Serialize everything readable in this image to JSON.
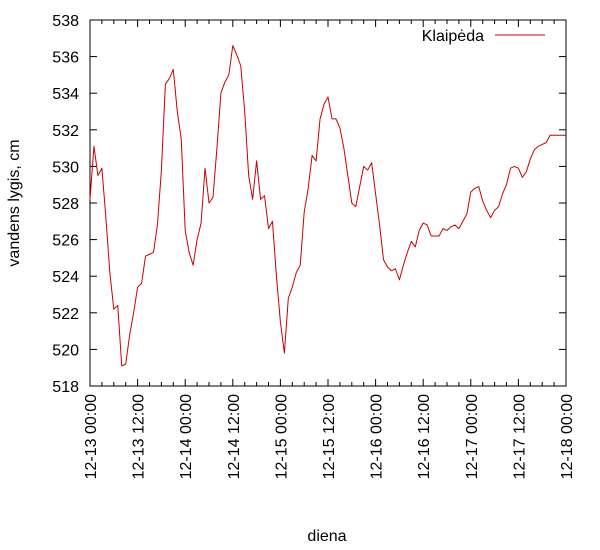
{
  "chart_data": {
    "type": "line",
    "title": "",
    "xlabel": "diena",
    "ylabel": "vandens lygis, cm",
    "ylim": [
      518,
      538
    ],
    "y_ticks": [
      518,
      520,
      522,
      524,
      526,
      528,
      530,
      532,
      534,
      536,
      538
    ],
    "x_range_hours": [
      0,
      120
    ],
    "x_ticks": [
      {
        "hour": 0,
        "label": "12-13 00:00"
      },
      {
        "hour": 12,
        "label": "12-13 12:00"
      },
      {
        "hour": 24,
        "label": "12-14 00:00"
      },
      {
        "hour": 36,
        "label": "12-14 12:00"
      },
      {
        "hour": 48,
        "label": "12-15 00:00"
      },
      {
        "hour": 60,
        "label": "12-15 12:00"
      },
      {
        "hour": 72,
        "label": "12-16 00:00"
      },
      {
        "hour": 84,
        "label": "12-16 12:00"
      },
      {
        "hour": 96,
        "label": "12-17 00:00"
      },
      {
        "hour": 108,
        "label": "12-17 12:00"
      },
      {
        "hour": 120,
        "label": "12-18 00:00"
      }
    ],
    "legend_position": "top-right",
    "series": [
      {
        "name": "Klaipėda",
        "color": "#cc0000",
        "x": [
          0,
          1,
          2,
          3,
          4,
          5,
          6,
          7,
          8,
          9,
          10,
          11,
          12,
          13,
          14,
          15,
          16,
          17,
          18,
          19,
          20,
          21,
          22,
          23,
          24,
          25,
          26,
          27,
          28,
          29,
          30,
          31,
          32,
          33,
          34,
          35,
          36,
          37,
          38,
          39,
          40,
          41,
          42,
          43,
          44,
          45,
          46,
          47,
          48,
          49,
          50,
          51,
          52,
          53,
          54,
          55,
          56,
          57,
          58,
          59,
          60,
          61,
          62,
          63,
          64,
          65,
          66,
          67,
          68,
          69,
          70,
          71,
          72,
          73,
          74,
          75,
          76,
          77,
          78,
          79,
          80,
          81,
          82,
          83,
          84,
          85,
          86,
          87,
          88,
          89,
          90,
          91,
          92,
          93,
          94,
          95,
          96,
          97,
          98,
          99,
          100,
          101,
          102,
          103,
          104,
          105,
          106,
          107,
          108,
          109,
          110,
          111,
          112,
          113,
          114,
          115,
          116,
          117,
          118,
          119,
          120
        ],
        "values": [
          528.2,
          531.1,
          529.5,
          529.9,
          527.2,
          524.2,
          522.2,
          522.4,
          519.1,
          519.2,
          520.8,
          522.0,
          523.4,
          523.6,
          525.1,
          525.2,
          525.3,
          526.8,
          529.8,
          534.5,
          534.8,
          535.3,
          533.0,
          531.5,
          526.5,
          525.3,
          524.6,
          526.0,
          526.9,
          529.9,
          528.0,
          528.3,
          531.0,
          534.0,
          534.6,
          535.0,
          536.6,
          536.1,
          535.5,
          533.0,
          529.5,
          528.2,
          530.3,
          528.2,
          528.4,
          526.6,
          527.0,
          524.0,
          521.5,
          519.8,
          522.8,
          523.4,
          524.2,
          524.6,
          527.5,
          528.8,
          530.6,
          530.3,
          532.6,
          533.4,
          533.8,
          532.6,
          532.6,
          532.1,
          531.0,
          529.5,
          528.0,
          527.8,
          528.9,
          530.0,
          529.8,
          530.2,
          528.5,
          526.8,
          524.9,
          524.5,
          524.3,
          524.4,
          523.8,
          524.6,
          525.3,
          525.9,
          525.6,
          526.5,
          526.9,
          526.8,
          526.2,
          526.2,
          526.2,
          526.6,
          526.5,
          526.7,
          526.8,
          526.6,
          527.0,
          527.4,
          528.6,
          528.8,
          528.9,
          528.1,
          527.6,
          527.2,
          527.6,
          527.8,
          528.5,
          529.0,
          529.9,
          530.0,
          529.9,
          529.4,
          529.7,
          530.4,
          530.9,
          531.1,
          531.2,
          531.3,
          531.7,
          531.7,
          531.7,
          531.7,
          531.7
        ]
      }
    ]
  }
}
